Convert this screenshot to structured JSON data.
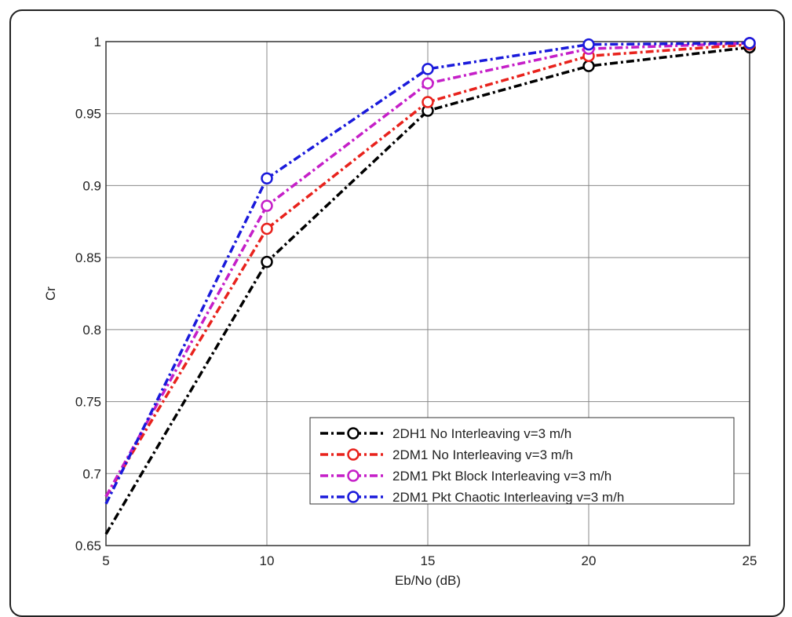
{
  "chart_data": {
    "type": "line",
    "title": "",
    "xlabel": "Eb/No (dB)",
    "ylabel": "Cr",
    "xlim": [
      5,
      25
    ],
    "ylim": [
      0.65,
      1
    ],
    "x": [
      5,
      10,
      15,
      20,
      25
    ],
    "xticks": [
      "5",
      "10",
      "15",
      "20",
      "25"
    ],
    "yticks": [
      "0.65",
      "0.7",
      "0.75",
      "0.8",
      "0.85",
      "0.9",
      "0.95",
      "1"
    ],
    "grid": true,
    "legend_position": "bottom-right",
    "series": [
      {
        "name": "2DH1 No Interleaving v=3 m/h",
        "color": "#000000",
        "values": [
          0.658,
          0.847,
          0.952,
          0.983,
          0.996
        ]
      },
      {
        "name": "2DM1 No Interleaving v=3 m/h",
        "color": "#e8221c",
        "values": [
          0.684,
          0.87,
          0.958,
          0.99,
          0.998
        ]
      },
      {
        "name": "2DM1 Pkt Block Interleaving v=3 m/h",
        "color": "#c51fc8",
        "values": [
          0.684,
          0.886,
          0.971,
          0.995,
          0.999
        ]
      },
      {
        "name": "2DM1 Pkt Chaotic Interleaving v=3 m/h",
        "color": "#1a1adb",
        "values": [
          0.679,
          0.905,
          0.981,
          0.998,
          0.999
        ]
      }
    ]
  }
}
